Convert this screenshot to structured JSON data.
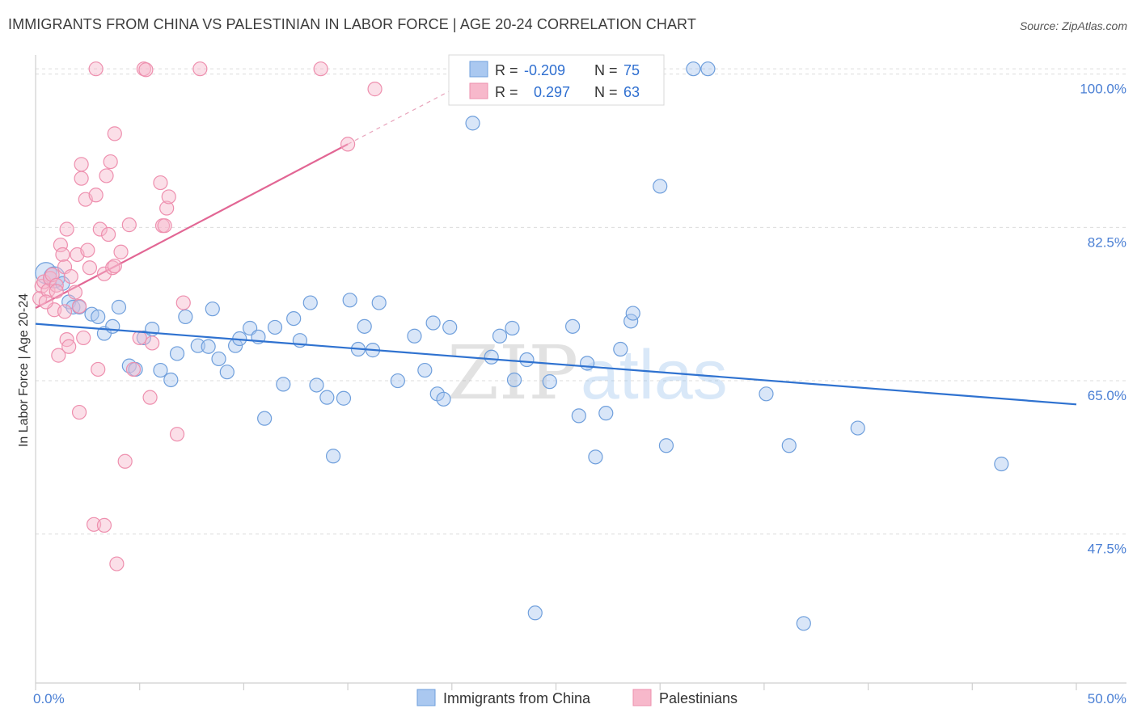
{
  "header": {
    "title": "IMMIGRANTS FROM CHINA VS PALESTINIAN IN LABOR FORCE | AGE 20-24 CORRELATION CHART",
    "source": "Source: ZipAtlas.com"
  },
  "watermark": {
    "zip": "ZIP",
    "atlas": "atlas"
  },
  "legend_box": {
    "rows": [
      {
        "r_label": "R =",
        "r_value": "-0.209",
        "n_label": "N =",
        "n_value": "75"
      },
      {
        "r_label": "R =",
        "r_value": "0.297",
        "n_label": "N =",
        "n_value": "63"
      }
    ]
  },
  "bottom_legend": {
    "items": [
      "Immigrants from China",
      "Palestinians"
    ]
  },
  "colors": {
    "blue_fill": "#aac8f0",
    "blue_stroke": "#6f9fdc",
    "blue_line": "#2f72d0",
    "pink_fill": "#f7b8cb",
    "pink_stroke": "#ee8fae",
    "pink_line": "#e26694",
    "tick_text": "#4a7fd4",
    "grid": "#dcdcdc",
    "value_text": "#2f6fd0"
  },
  "chart_data": {
    "type": "scatter",
    "title": "IMMIGRANTS FROM CHINA VS PALESTINIAN IN LABOR FORCE | AGE 20-24 CORRELATION CHART",
    "xlabel": "",
    "ylabel": "In Labor Force | Age 20-24",
    "xlim": [
      0,
      50
    ],
    "ylim": [
      30.5,
      102
    ],
    "x_tick_labels": [
      "0.0%",
      "50.0%"
    ],
    "y_ticks": [
      47.5,
      65.0,
      82.5,
      100.0
    ],
    "y_tick_labels": [
      "47.5%",
      "65.0%",
      "82.5%",
      "100.0%"
    ],
    "series": [
      {
        "name": "Immigrants from China",
        "R": -0.209,
        "N": 75,
        "trend": {
          "x": [
            0,
            50
          ],
          "y": [
            71.5,
            62.3
          ]
        },
        "points": [
          [
            0.5,
            77.3
          ],
          [
            0.9,
            76.8
          ],
          [
            1.3,
            76.1
          ],
          [
            1.6,
            74.0
          ],
          [
            1.8,
            73.4
          ],
          [
            2.1,
            73.4
          ],
          [
            2.7,
            72.6
          ],
          [
            3.0,
            72.3
          ],
          [
            3.3,
            70.4
          ],
          [
            3.7,
            71.2
          ],
          [
            4.0,
            73.4
          ],
          [
            4.5,
            66.7
          ],
          [
            4.8,
            66.3
          ],
          [
            5.2,
            69.9
          ],
          [
            5.6,
            70.9
          ],
          [
            6.0,
            66.2
          ],
          [
            6.5,
            65.1
          ],
          [
            6.8,
            68.1
          ],
          [
            7.2,
            72.3
          ],
          [
            7.8,
            69.0
          ],
          [
            8.3,
            68.9
          ],
          [
            8.5,
            73.2
          ],
          [
            8.8,
            67.5
          ],
          [
            9.2,
            66.0
          ],
          [
            9.6,
            69.0
          ],
          [
            9.8,
            69.8
          ],
          [
            10.3,
            71.0
          ],
          [
            10.7,
            70.0
          ],
          [
            11.0,
            60.7
          ],
          [
            11.5,
            71.1
          ],
          [
            11.9,
            64.6
          ],
          [
            12.4,
            72.1
          ],
          [
            12.7,
            69.6
          ],
          [
            13.2,
            73.9
          ],
          [
            13.5,
            64.5
          ],
          [
            14.0,
            63.1
          ],
          [
            14.3,
            56.4
          ],
          [
            14.8,
            63.0
          ],
          [
            15.1,
            74.2
          ],
          [
            15.5,
            68.6
          ],
          [
            15.8,
            71.2
          ],
          [
            16.2,
            68.5
          ],
          [
            16.5,
            73.9
          ],
          [
            17.4,
            65.0
          ],
          [
            18.2,
            70.1
          ],
          [
            18.7,
            66.2
          ],
          [
            19.1,
            71.6
          ],
          [
            19.3,
            63.5
          ],
          [
            19.6,
            62.9
          ],
          [
            19.9,
            71.1
          ],
          [
            21.0,
            94.4
          ],
          [
            21.9,
            67.7
          ],
          [
            22.3,
            70.1
          ],
          [
            22.9,
            71.0
          ],
          [
            23.0,
            65.1
          ],
          [
            23.6,
            67.4
          ],
          [
            24.0,
            38.5
          ],
          [
            24.7,
            64.9
          ],
          [
            25.8,
            71.2
          ],
          [
            26.1,
            61.0
          ],
          [
            26.5,
            67.0
          ],
          [
            26.9,
            56.3
          ],
          [
            27.4,
            61.3
          ],
          [
            28.1,
            68.6
          ],
          [
            28.6,
            71.8
          ],
          [
            28.7,
            72.7
          ],
          [
            30.0,
            87.2
          ],
          [
            30.3,
            57.6
          ],
          [
            31.6,
            100.6
          ],
          [
            32.3,
            100.6
          ],
          [
            35.1,
            63.5
          ],
          [
            36.2,
            57.6
          ],
          [
            36.9,
            37.3
          ],
          [
            39.5,
            59.6
          ],
          [
            46.4,
            55.5
          ]
        ]
      },
      {
        "name": "Palestinians",
        "R": 0.297,
        "N": 63,
        "trend": {
          "x": [
            0,
            15
          ],
          "y": [
            73.3,
            92.0
          ]
        },
        "trend_ext": {
          "x": [
            15,
            20
          ],
          "y": [
            92.0,
            98.2
          ]
        },
        "points": [
          [
            0.2,
            74.4
          ],
          [
            0.3,
            75.8
          ],
          [
            0.4,
            76.3
          ],
          [
            0.6,
            75.3
          ],
          [
            0.7,
            76.7
          ],
          [
            0.8,
            77.1
          ],
          [
            0.9,
            73.1
          ],
          [
            1.0,
            75.9
          ],
          [
            1.1,
            67.9
          ],
          [
            1.2,
            80.5
          ],
          [
            1.3,
            79.4
          ],
          [
            1.4,
            78.0
          ],
          [
            1.5,
            82.3
          ],
          [
            1.5,
            69.7
          ],
          [
            1.6,
            68.9
          ],
          [
            1.7,
            76.9
          ],
          [
            1.9,
            75.1
          ],
          [
            2.0,
            79.4
          ],
          [
            2.1,
            73.5
          ],
          [
            2.1,
            61.4
          ],
          [
            2.2,
            89.7
          ],
          [
            2.2,
            88.1
          ],
          [
            2.4,
            85.7
          ],
          [
            2.5,
            79.9
          ],
          [
            2.6,
            77.9
          ],
          [
            2.8,
            48.6
          ],
          [
            2.9,
            100.6
          ],
          [
            2.9,
            86.2
          ],
          [
            3.0,
            66.3
          ],
          [
            3.1,
            82.3
          ],
          [
            3.3,
            48.5
          ],
          [
            3.3,
            77.2
          ],
          [
            3.4,
            88.4
          ],
          [
            3.5,
            81.7
          ],
          [
            3.6,
            90.0
          ],
          [
            3.7,
            77.9
          ],
          [
            3.8,
            93.2
          ],
          [
            3.9,
            44.1
          ],
          [
            4.1,
            79.7
          ],
          [
            4.3,
            55.8
          ],
          [
            4.5,
            82.8
          ],
          [
            4.7,
            66.3
          ],
          [
            5.0,
            69.9
          ],
          [
            5.2,
            100.6
          ],
          [
            5.3,
            100.5
          ],
          [
            5.5,
            63.1
          ],
          [
            5.6,
            69.3
          ],
          [
            6.0,
            87.6
          ],
          [
            6.1,
            82.7
          ],
          [
            6.2,
            82.7
          ],
          [
            6.3,
            84.7
          ],
          [
            6.4,
            86.0
          ],
          [
            6.8,
            58.9
          ],
          [
            7.1,
            73.9
          ],
          [
            7.9,
            100.6
          ],
          [
            13.7,
            100.6
          ],
          [
            15.0,
            92.0
          ],
          [
            16.3,
            98.3
          ],
          [
            1.4,
            72.9
          ],
          [
            2.3,
            69.9
          ],
          [
            0.5,
            74.0
          ],
          [
            1.0,
            75.2
          ],
          [
            3.8,
            78.1
          ]
        ]
      }
    ]
  }
}
